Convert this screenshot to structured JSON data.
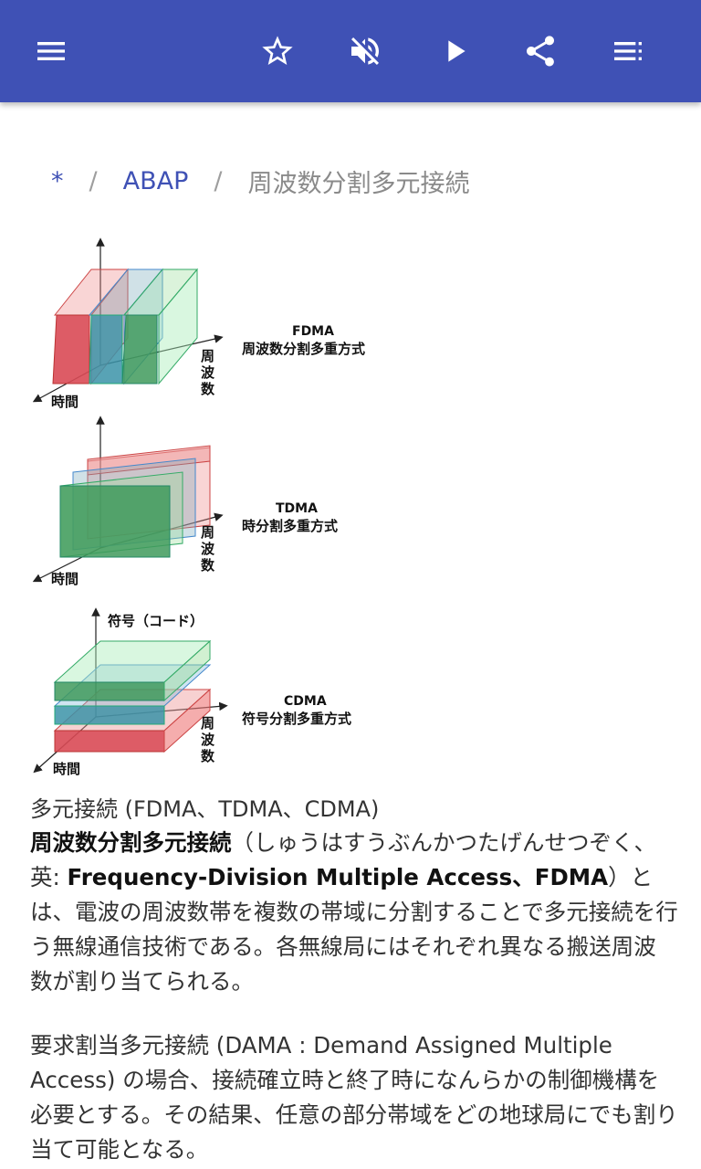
{
  "appbar": {
    "background": "#3f51b5",
    "icons": [
      "menu-icon",
      "star-icon",
      "volume-off-icon",
      "play-icon",
      "share-icon",
      "playlist-icon"
    ]
  },
  "breadcrumb": {
    "home": "*",
    "category": "ABAP",
    "current": "周波数分割多元接続",
    "separator": "/"
  },
  "figure": {
    "fdma": {
      "title": "FDMA",
      "subtitle": "周波数分割多重方式"
    },
    "tdma": {
      "title": "TDMA",
      "subtitle": "時分割多重方式"
    },
    "cdma": {
      "title": "CDMA",
      "subtitle": "符号分割多重方式"
    },
    "axis_time": "時間",
    "axis_freq": [
      "周",
      "波",
      "数"
    ],
    "axis_code": "符号（コード）"
  },
  "caption": "多元接続 (FDMA、TDMA、CDMA)",
  "paragraph1": {
    "term": "周波数分割多元接続",
    "reading": "（しゅうはすうぶんかつたげんせつぞく、英: ",
    "english": "Frequency-Division Multiple Access、FDMA",
    "rest": "）とは、電波の周波数帯を複数の帯域に分割することで多元接続を行う無線通信技術である。各無線局にはそれぞれ異なる搬送周波数が割り当てられる。"
  },
  "paragraph2": "要求割当多元接続 (DAMA : Demand Assigned Multiple Access) の場合、接続確立時と終了時になんらかの制御機構を必要とする。その結果、任意の部分帯域をどの地球局にでも割り当て可能となる。"
}
